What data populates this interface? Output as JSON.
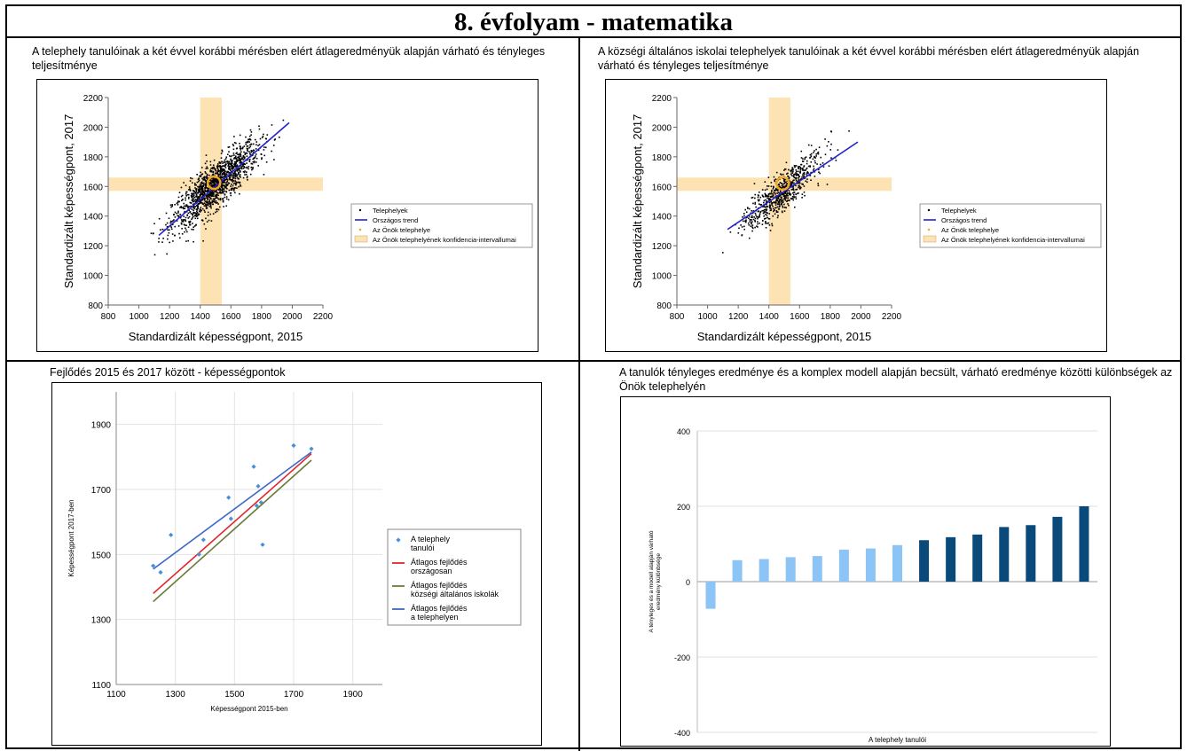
{
  "page": {
    "title": "8. évfolyam - matematika"
  },
  "colors": {
    "scatter": "#000000",
    "trend": "#2222cc",
    "highlight": "#f5a623",
    "band": "#fde3b4",
    "blue_points": "#4a90d9",
    "red": "#e0262a",
    "olive": "#6b7c3a",
    "blue_line": "#3d68c9",
    "bar_light": "#8cc4f5",
    "bar_dark": "#0a4a7a"
  },
  "chart_data": [
    {
      "type": "scatter",
      "title": "A telephely tanulóinak a két évvel korábbi mérésben elért átlageredményük alapján várható és tényleges teljesítménye",
      "xlabel": "Standardizált képességpont, 2015",
      "ylabel": "Standardizált képességpont, 2017",
      "xlim": [
        800,
        2200
      ],
      "ylim": [
        800,
        2200
      ],
      "xticks": [
        "800",
        "1000",
        "1200",
        "1400",
        "1600",
        "1800",
        "2000",
        "2200"
      ],
      "yticks": [
        "800",
        "1000",
        "1200",
        "1400",
        "1600",
        "1800",
        "2000",
        "2200"
      ],
      "point_cloud": {
        "center": [
          1500,
          1610
        ],
        "spread": [
          140,
          140
        ],
        "count": 1400
      },
      "trend": [
        [
          1130,
          1270
        ],
        [
          1980,
          2030
        ]
      ],
      "site": [
        1490,
        1625
      ],
      "band_x": [
        1400,
        1540
      ],
      "band_y": [
        1570,
        1660
      ],
      "legend": [
        "Telephelyek",
        "Országos trend",
        "Az Önök telephelye",
        "Az Önök telephelyének konfidencia-intervallumai"
      ]
    },
    {
      "type": "scatter",
      "title": "A községi általános iskolai telephelyek tanulóinak a két évvel korábbi mérésben elért átlageredményük alapján várható és tényleges teljesítménye",
      "xlabel": "Standardizált képességpont, 2015",
      "ylabel": "Standardizált képességpont, 2017",
      "xlim": [
        800,
        2200
      ],
      "ylim": [
        1000,
        2200
      ],
      "xticks": [
        "800",
        "1000",
        "1200",
        "1400",
        "1600",
        "1800",
        "2000",
        "2200"
      ],
      "yticks": [
        "800",
        "1000",
        "1200",
        "1400",
        "1600",
        "1800",
        "2000",
        "2200"
      ],
      "point_cloud": {
        "center": [
          1480,
          1560
        ],
        "spread": [
          130,
          120
        ],
        "count": 700
      },
      "trend": [
        [
          1130,
          1310
        ],
        [
          1980,
          1900
        ]
      ],
      "site": [
        1490,
        1620
      ],
      "band_x": [
        1400,
        1540
      ],
      "band_y": [
        1570,
        1660
      ],
      "legend": [
        "Telephelyek",
        "Országos trend",
        "Az Önök telephelye",
        "Az Önök telephelyének konfidencia-intervallumai"
      ]
    },
    {
      "type": "scatter",
      "title": "Fejlődés 2015 és 2017 között - képességpontok",
      "xlabel": "Képességpont 2015-ben",
      "ylabel": "Képességpont 2017-ben",
      "xlim": [
        1100,
        2000
      ],
      "ylim": [
        1100,
        2000
      ],
      "xticks": [
        "1100",
        "1300",
        "1500",
        "1700",
        "1900"
      ],
      "yticks": [
        "1100",
        "1300",
        "1500",
        "1700",
        "1900"
      ],
      "points": [
        [
          1225,
          1465
        ],
        [
          1250,
          1445
        ],
        [
          1285,
          1560
        ],
        [
          1380,
          1500
        ],
        [
          1395,
          1545
        ],
        [
          1480,
          1675
        ],
        [
          1488,
          1610
        ],
        [
          1565,
          1770
        ],
        [
          1575,
          1650
        ],
        [
          1580,
          1710
        ],
        [
          1590,
          1660
        ],
        [
          1595,
          1530
        ],
        [
          1700,
          1835
        ],
        [
          1760,
          1825
        ]
      ],
      "lines": [
        {
          "name": "Átlagos fejlődés országosan",
          "color": "red",
          "from": [
            1225,
            1380
          ],
          "to": [
            1760,
            1810
          ]
        },
        {
          "name": "Átlagos fejlődés községi általános iskolák",
          "color": "olive",
          "from": [
            1225,
            1355
          ],
          "to": [
            1760,
            1790
          ]
        },
        {
          "name": "Átlagos fejlődés a telephelyen",
          "color": "blue_line",
          "from": [
            1225,
            1455
          ],
          "to": [
            1760,
            1815
          ]
        }
      ],
      "legend": [
        {
          "lines": [
            "A telephely",
            "tanulói"
          ],
          "kind": "dot"
        },
        {
          "lines": [
            "Átlagos fejlődés",
            "országosan"
          ],
          "kind": "red"
        },
        {
          "lines": [
            "Átlagos fejlődés",
            "községi általános iskolák"
          ],
          "kind": "olive"
        },
        {
          "lines": [
            "Átlagos fejlődés",
            "a telephelyen"
          ],
          "kind": "blue_line"
        }
      ]
    },
    {
      "type": "bar",
      "title": "A tanulók tényleges eredménye és a komplex modell alapján becsült, várható eredménye közötti különbségek az Önök telephelyén",
      "xlabel": "A telephely tanulói",
      "ylabel": [
        "A tényleges és a modell alapján várható",
        "eredmény különbsége"
      ],
      "ylim": [
        -400,
        400
      ],
      "yticks": [
        "-400",
        "-200",
        "0",
        "200",
        "400"
      ],
      "values": [
        -72,
        57,
        60,
        65,
        68,
        85,
        88,
        97,
        110,
        118,
        125,
        145,
        150,
        172,
        200
      ],
      "dark_from": 8
    }
  ]
}
